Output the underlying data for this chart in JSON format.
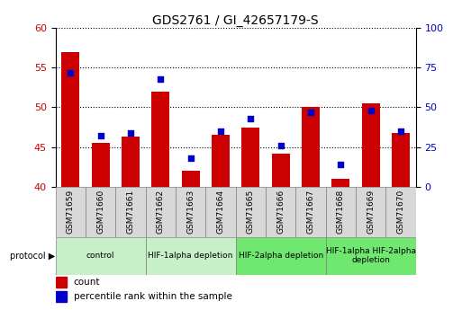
{
  "title": "GDS2761 / GI_42657179-S",
  "samples": [
    "GSM71659",
    "GSM71660",
    "GSM71661",
    "GSM71662",
    "GSM71663",
    "GSM71664",
    "GSM71665",
    "GSM71666",
    "GSM71667",
    "GSM71668",
    "GSM71669",
    "GSM71670"
  ],
  "count_values": [
    57.0,
    45.5,
    46.3,
    52.0,
    42.0,
    46.5,
    47.5,
    44.2,
    50.0,
    41.0,
    50.5,
    46.8
  ],
  "percentile_values": [
    72,
    32,
    34,
    68,
    18,
    35,
    43,
    26,
    47,
    14,
    48,
    35
  ],
  "ylim_left": [
    40,
    60
  ],
  "ylim_right": [
    0,
    100
  ],
  "yticks_left": [
    40,
    45,
    50,
    55,
    60
  ],
  "yticks_right": [
    0,
    25,
    50,
    75,
    100
  ],
  "bar_color": "#cc0000",
  "dot_color": "#0000cc",
  "bg_color": "#d8d8d8",
  "protocol_groups": [
    {
      "label": "control",
      "start": 0,
      "end": 2,
      "color": "#c8f0c8"
    },
    {
      "label": "HIF-1alpha depletion",
      "start": 3,
      "end": 5,
      "color": "#c8f0c8"
    },
    {
      "label": "HIF-2alpha depletion",
      "start": 6,
      "end": 8,
      "color": "#70e870"
    },
    {
      "label": "HIF-1alpha HIF-2alpha\ndepletion",
      "start": 9,
      "end": 11,
      "color": "#70e870"
    }
  ],
  "legend_items": [
    {
      "label": "count",
      "color": "#cc0000"
    },
    {
      "label": "percentile rank within the sample",
      "color": "#0000cc"
    }
  ],
  "figsize": [
    5.13,
    3.45
  ],
  "dpi": 100
}
